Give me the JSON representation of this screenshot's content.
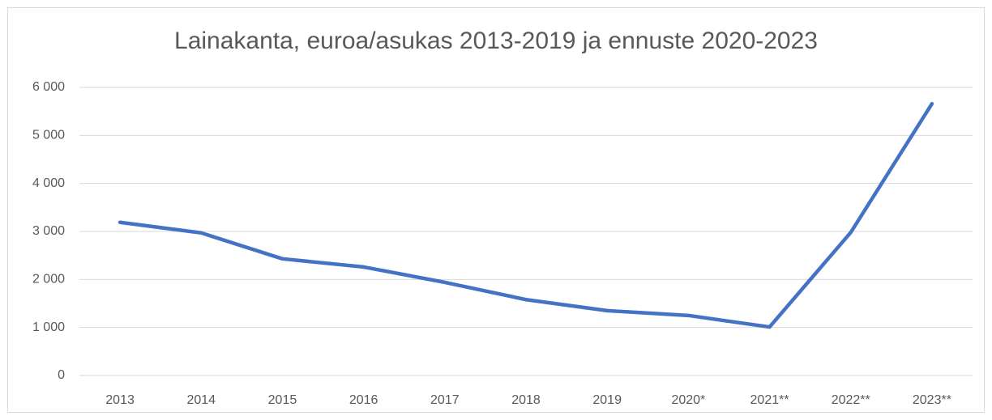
{
  "chart_data": {
    "type": "line",
    "title": "Lainakanta, euroa/asukas 2013-2019 ja ennuste 2020-2023",
    "categories": [
      "2013",
      "2014",
      "2015",
      "2016",
      "2017",
      "2018",
      "2019",
      "2020*",
      "2021**",
      "2022**",
      "2023**"
    ],
    "values": [
      3190,
      2970,
      2430,
      2260,
      1940,
      1580,
      1350,
      1250,
      1010,
      2980,
      5660
    ],
    "color": "#4472c4",
    "ylim": [
      0,
      6000
    ],
    "yticks": [
      0,
      {
        "value": 1000,
        "label": "1 000"
      },
      {
        "value": 2000,
        "label": "2 000"
      },
      {
        "value": 3000,
        "label": "3 000"
      },
      {
        "value": 4000,
        "label": "4 000"
      },
      {
        "value": 5000,
        "label": "5 000"
      },
      {
        "value": 6000,
        "label": "6 000"
      }
    ],
    "grid": true
  }
}
